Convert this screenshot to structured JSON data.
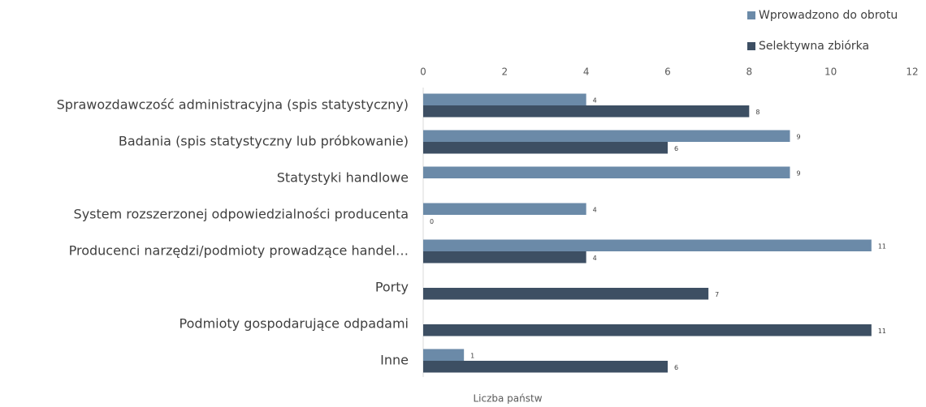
{
  "chart_data": {
    "type": "barh",
    "xlabel": "Liczba państw",
    "categories": [
      "Sprawozdawczość administracyjna (spis statystyczny)",
      "Badania (spis statystyczny lub próbkowanie)",
      "Statystyki handlowe",
      "System rozszerzonej odpowiedzialności producenta",
      "Producenci narzędzi/podmioty prowadzące handel…",
      "Porty",
      "Podmioty gospodarujące odpadami",
      "Inne"
    ],
    "series": [
      {
        "name": "Wprowadzono do obrotu",
        "color": "#6b8aa8",
        "values": [
          4,
          9,
          9,
          4,
          11,
          null,
          null,
          1
        ]
      },
      {
        "name": "Selektywna zbiórka",
        "color": "#3d4f63",
        "values": [
          8,
          6,
          null,
          0,
          4,
          7,
          11,
          6
        ]
      }
    ],
    "xlim": [
      0,
      12
    ],
    "xticks": [
      0,
      2,
      4,
      6,
      8,
      10,
      12
    ],
    "grid": false,
    "legend": "top-right"
  }
}
